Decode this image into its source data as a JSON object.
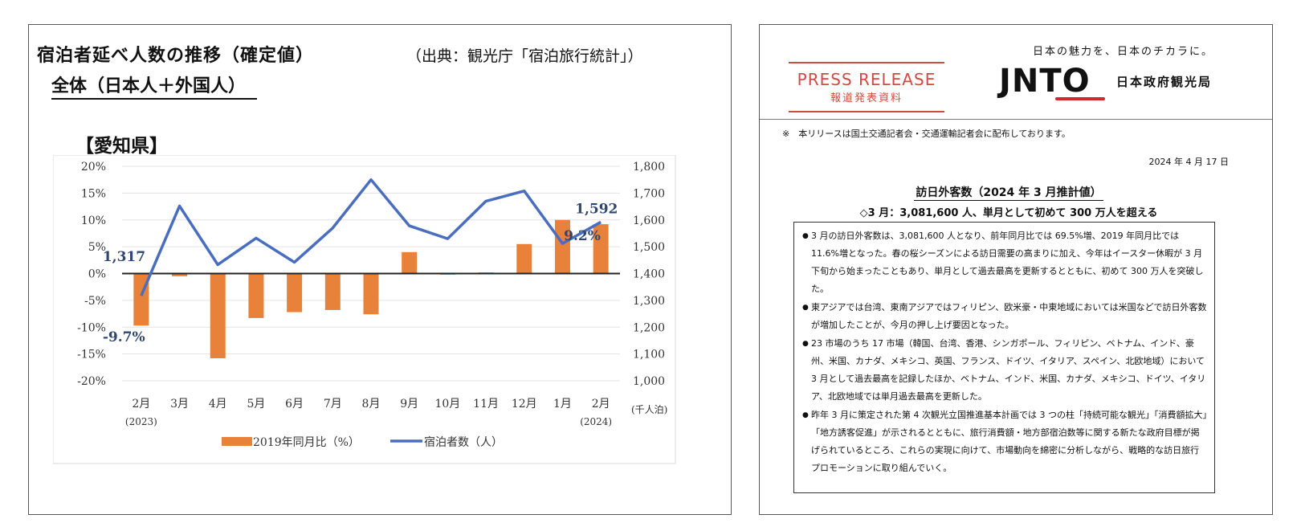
{
  "left_panel": {
    "title": "宿泊者延べ人数の推移（確定値）",
    "source": "（出典：観光庁「宿泊旅行統計」）",
    "subtitle": "全体（日本人＋外国人）",
    "region": "【愛知県】"
  },
  "chart_data": {
    "type": "bar+line",
    "categories": [
      "2月",
      "3月",
      "4月",
      "5月",
      "6月",
      "7月",
      "8月",
      "9月",
      "10月",
      "11月",
      "12月",
      "1月",
      "2月"
    ],
    "category_sublabels": [
      "(2023)",
      "",
      "",
      "",
      "",
      "",
      "",
      "",
      "",
      "",
      "",
      "",
      "(2024)"
    ],
    "series": [
      {
        "name": "2019年同月比（%）",
        "type": "bar",
        "axis": "left",
        "color": "#e8823a",
        "values": [
          -9.7,
          -0.5,
          -15.8,
          -8.3,
          -7.2,
          -6.8,
          -7.6,
          4.0,
          -0.2,
          0.2,
          5.5,
          10.0,
          9.2
        ]
      },
      {
        "name": "宿泊者数（人）",
        "type": "line",
        "axis": "right",
        "color": "#4a6ebf",
        "values": [
          1317,
          1652,
          1433,
          1532,
          1442,
          1570,
          1750,
          1578,
          1530,
          1670,
          1708,
          1512,
          1592
        ]
      }
    ],
    "left_axis": {
      "min": -20,
      "max": 20,
      "ticks": [
        "20%",
        "15%",
        "10%",
        "5%",
        "0%",
        "-5%",
        "-10%",
        "-15%",
        "-20%"
      ]
    },
    "right_axis": {
      "min": 1000,
      "max": 1800,
      "ticks": [
        "1,800",
        "1,700",
        "1,600",
        "1,500",
        "1,400",
        "1,300",
        "1,200",
        "1,100",
        "1,000"
      ],
      "unit": "(千人泊)"
    },
    "annotations": {
      "first_line_value": "1,317",
      "last_line_value": "1,592",
      "first_bar_value": "-9.7%",
      "last_bar_value": "9.2%"
    },
    "legend": {
      "bar": "2019年同月比（%）",
      "line": "宿泊者数（人）",
      "position": "bottom"
    }
  },
  "press_release": {
    "press_en": "PRESS RELEASE",
    "press_ja": "報道発表資料",
    "tagline": "日本の魅力を、日本のチカラに。",
    "logo_text": "JNTO",
    "org_name": "日本政府観光局",
    "note": "※　本リリースは国土交通記者会・交通運輸記者会に配布しております。",
    "date": "2024 年 4 月 17 日",
    "heading": "訪日外客数（2024 年 3 月推計値）",
    "subheading": "◇3 月：3,081,600 人、単月として初めて 300 万人を超える",
    "bullets": [
      "3 月の訪日外客数は、3,081,600 人となり、前年同月比では 69.5%増、2019 年同月比では 11.6%増となった。春の桜シーズンによる訪日需要の高まりに加え、今年はイースター休暇が 3 月下旬から始まったこともあり、単月として過去最高を更新するとともに、初めて 300 万人を突破した。",
      "東アジアでは台湾、東南アジアではフィリピン、欧米豪・中東地域においては米国などで訪日外客数が増加したことが、今月の押し上げ要因となった。",
      "23 市場のうち 17 市場（韓国、台湾、香港、シンガポール、フィリピン、ベトナム、インド、豪州、米国、カナダ、メキシコ、英国、フランス、ドイツ、イタリア、スペイン、北欧地域）において 3 月として過去最高を記録したほか、ベトナム、インド、米国、カナダ、メキシコ、ドイツ、イタリア、北欧地域では単月過去最高を更新した。",
      "昨年 3 月に策定された第 4 次観光立国推進基本計画では 3 つの柱「持続可能な観光」「消費額拡大」「地方誘客促進」が示されるとともに、旅行消費額・地方部宿泊数等に関する新たな政府目標が掲げられているところ、これらの実現に向けて、市場動向を綿密に分析しながら、戦略的な訪日旅行プロモーションに取り組んでいく。"
    ]
  }
}
